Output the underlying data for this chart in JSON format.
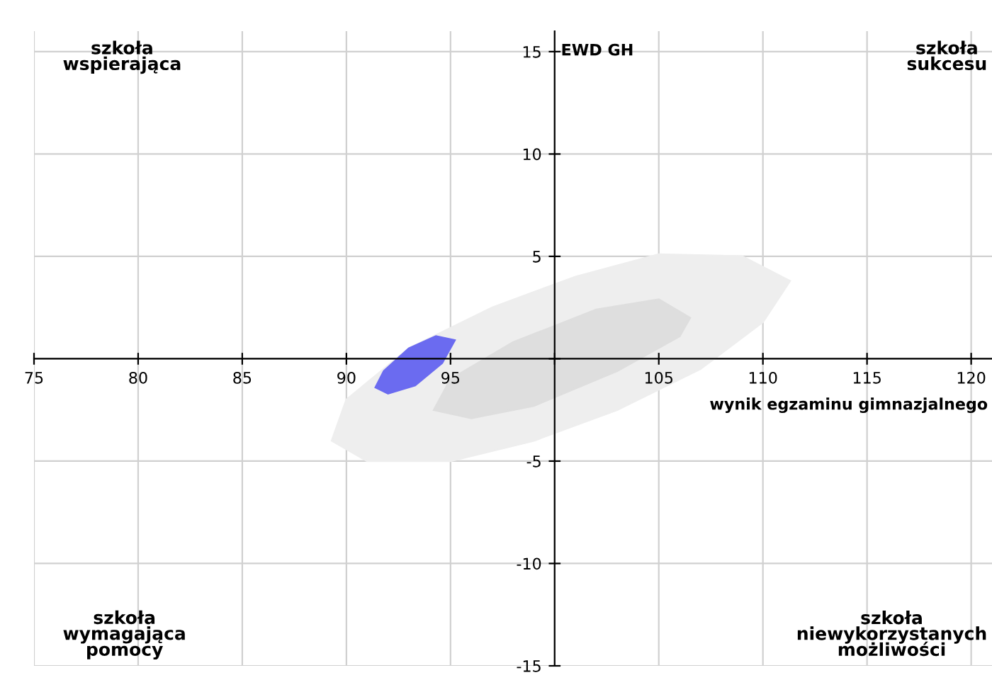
{
  "chart_data": {
    "type": "area",
    "xlabel": "wynik egzaminu gimnazjalnego",
    "ylabel": "EWD GH",
    "xlim": [
      75,
      121
    ],
    "ylim": [
      -15,
      16
    ],
    "xticks": [
      75,
      80,
      85,
      90,
      95,
      {
        "value": 100,
        "label": null
      },
      105,
      110,
      115,
      120
    ],
    "yticks": [
      -15,
      -10,
      -5,
      {
        "value": 0,
        "label": null
      },
      5,
      10,
      15
    ],
    "grid": true,
    "annotations": [
      "szkoła\nwspierająca",
      "szkoła\nsukcesu",
      "szkoła\nwymagająca\npomocy",
      "szkoła\nniewykorzystanych\nmożliwości"
    ],
    "series": [
      {
        "color": "#eeeeee",
        "x": [
          111.3,
          109,
          105,
          101,
          97,
          93,
          90,
          89.3,
          91,
          95,
          99,
          103,
          107,
          110
        ],
        "values": [
          3.8,
          5.0,
          5.1,
          4.0,
          2.5,
          0.5,
          -2.0,
          -4.0,
          -5.0,
          -5.0,
          -4.0,
          -2.5,
          -0.5,
          1.8
        ]
      },
      {
        "color": "#dedede",
        "x": [
          106.5,
          105,
          102,
          98,
          95,
          94.2,
          96,
          99,
          103,
          106
        ],
        "values": [
          2.0,
          2.9,
          2.4,
          0.8,
          -1.0,
          -2.5,
          -2.9,
          -2.3,
          -0.6,
          1.1
        ]
      },
      {
        "color": "#6b6bf0",
        "x": [
          95.2,
          94.3,
          93,
          91.8,
          91.4,
          92,
          93.3,
          94.6
        ],
        "values": [
          0.9,
          1.1,
          0.5,
          -0.6,
          -1.4,
          -1.7,
          -1.3,
          -0.2
        ]
      }
    ]
  }
}
